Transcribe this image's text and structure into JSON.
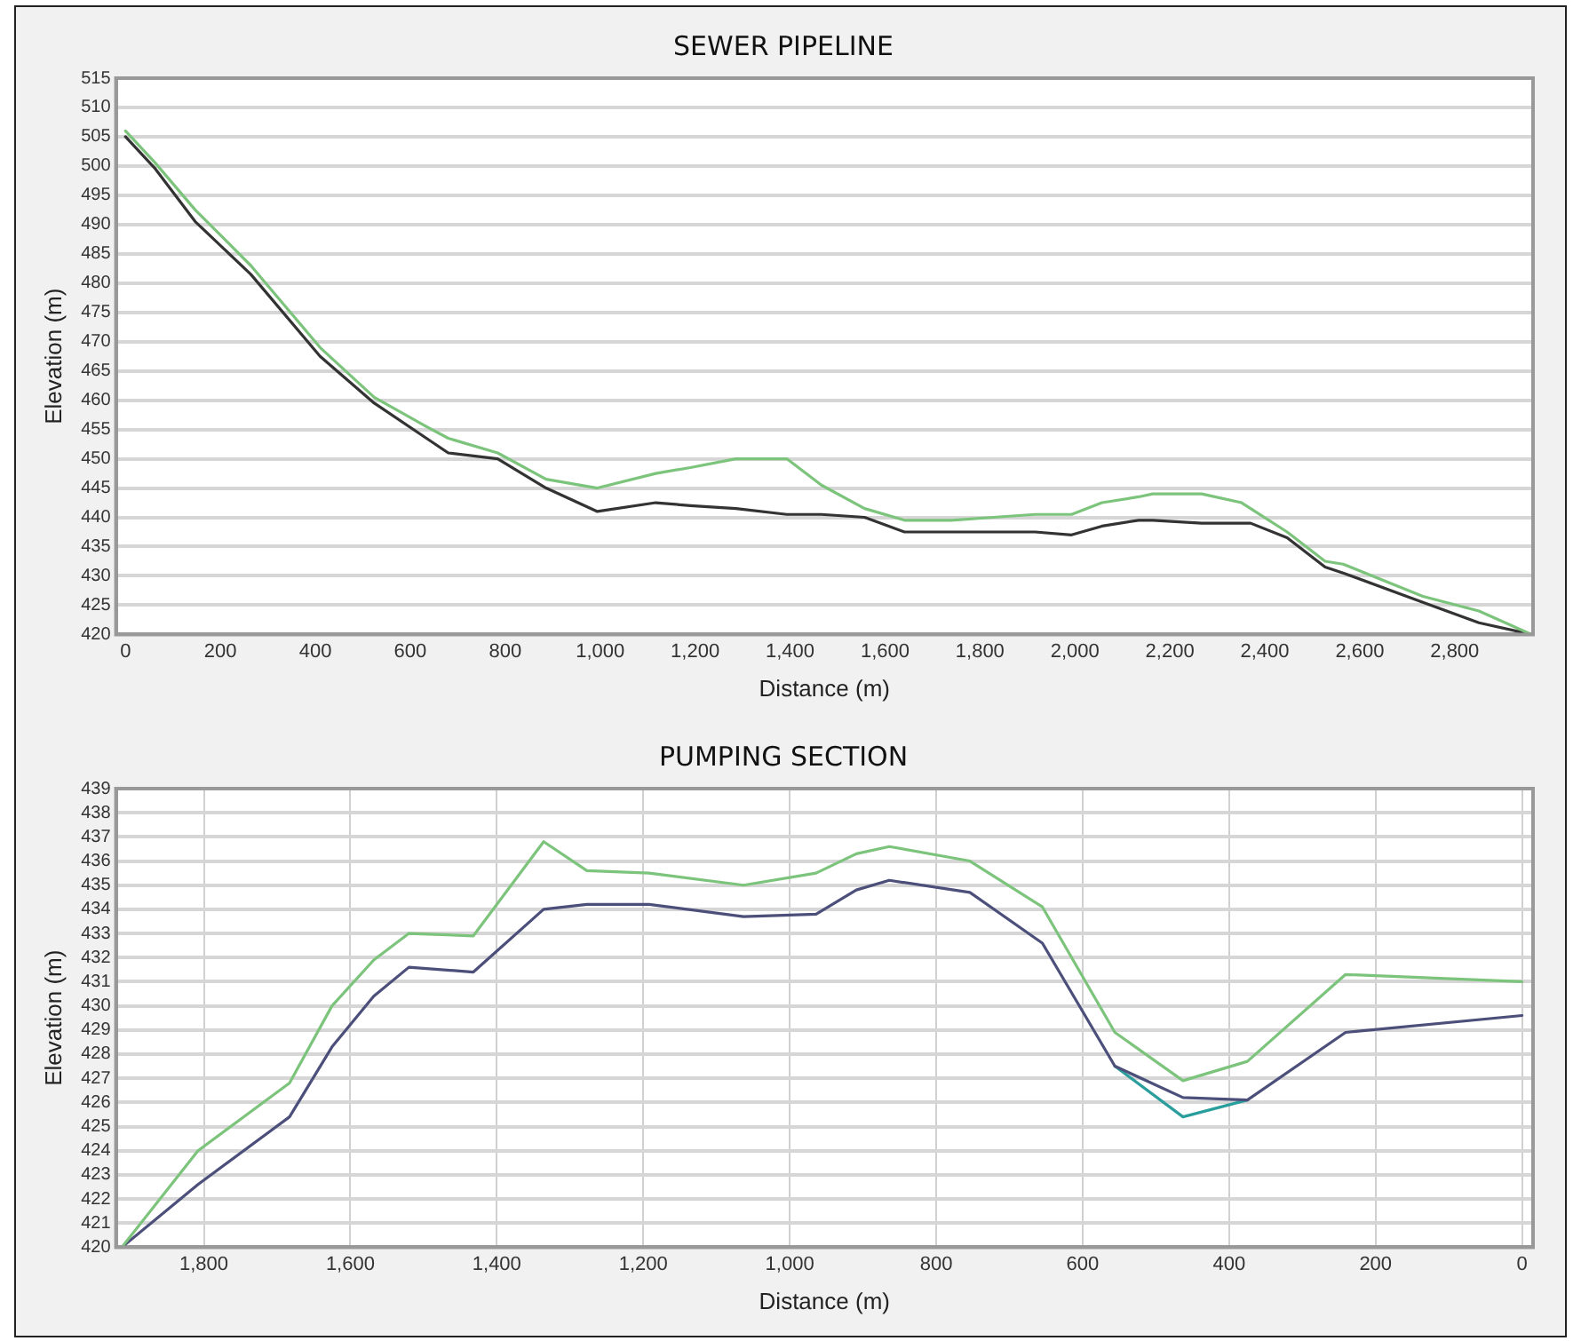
{
  "chart_data": [
    {
      "type": "line",
      "title": "SEWER PIPELINE",
      "xlabel": "Distance (m)",
      "ylabel": "Elevation (m)",
      "marker": "none",
      "line_style": "solid",
      "grid": "y",
      "legend": false,
      "xlim": [
        -20,
        2965
      ],
      "ylim": [
        420,
        515
      ],
      "xticks": [
        0,
        200,
        400,
        600,
        800,
        {
          "value": 1000,
          "label": "1,000"
        },
        {
          "value": 1200,
          "label": "1,200"
        },
        {
          "value": 1400,
          "label": "1,400"
        },
        {
          "value": 1600,
          "label": "1,600"
        },
        {
          "value": 1800,
          "label": "1,800"
        },
        {
          "value": 2000,
          "label": "2,000"
        },
        {
          "value": 2200,
          "label": "2,200"
        },
        {
          "value": 2400,
          "label": "2,400"
        },
        {
          "value": 2600,
          "label": "2,600"
        },
        {
          "value": 2800,
          "label": "2,800"
        }
      ],
      "yticks": [
        420,
        425,
        430,
        435,
        440,
        445,
        450,
        455,
        460,
        465,
        470,
        475,
        480,
        485,
        490,
        495,
        500,
        505,
        510,
        515
      ],
      "series": [
        {
          "color": "#7cc47c",
          "x": [
            0,
            63,
            147,
            264,
            410,
            524,
            634,
            680,
            784,
            886,
            994,
            1117,
            1190,
            1286,
            1393,
            1466,
            1557,
            1641,
            1740,
            1828,
            1916,
            1993,
            2057,
            2134,
            2164,
            2267,
            2351,
            2370,
            2447,
            2527,
            2565,
            2733,
            2851,
            2962
          ],
          "values": [
            506,
            500.5,
            492.5,
            483,
            469,
            460.5,
            455.5,
            453.5,
            451,
            446.5,
            445,
            447.5,
            448.5,
            450,
            450,
            445.5,
            441.5,
            439.5,
            439.5,
            440,
            440.5,
            440.5,
            442.5,
            443.5,
            444,
            444,
            442.5,
            441.5,
            437.5,
            432.5,
            432,
            426.5,
            424,
            420
          ]
        },
        {
          "color": "#333333",
          "x": [
            0,
            63,
            147,
            264,
            410,
            524,
            634,
            680,
            784,
            886,
            994,
            1117,
            1190,
            1286,
            1393,
            1466,
            1557,
            1641,
            1740,
            1828,
            1916,
            1993,
            2057,
            2134,
            2164,
            2267,
            2351,
            2370,
            2447,
            2527,
            2565,
            2733,
            2851,
            2962
          ],
          "values": [
            505,
            499.5,
            490.5,
            481.5,
            467.5,
            459.5,
            453.5,
            451,
            450,
            445,
            441,
            442.5,
            442,
            441.5,
            440.5,
            440.5,
            440,
            437.5,
            437.5,
            437.5,
            437.5,
            437,
            438.5,
            439.5,
            439.5,
            439,
            439,
            439,
            436.5,
            431.5,
            430.5,
            425.5,
            422,
            420
          ]
        }
      ]
    },
    {
      "type": "line",
      "title": "PUMPING SECTION",
      "xlabel": "Distance (m)",
      "ylabel": "Elevation (m)",
      "marker": "none",
      "line_style": "solid",
      "grid": true,
      "legend": false,
      "xlim": [
        1920,
        -15
      ],
      "ylim": [
        420,
        439
      ],
      "xticks": [
        {
          "value": 1800,
          "label": "1,800"
        },
        {
          "value": 1600,
          "label": "1,600"
        },
        {
          "value": 1400,
          "label": "1,400"
        },
        {
          "value": 1200,
          "label": "1,200"
        },
        {
          "value": 1000,
          "label": "1,000"
        },
        800,
        600,
        400,
        200,
        0
      ],
      "yticks": [
        420,
        421,
        422,
        423,
        424,
        425,
        426,
        427,
        428,
        429,
        430,
        431,
        432,
        433,
        434,
        435,
        436,
        437,
        438,
        439
      ],
      "series": [
        {
          "color": "#7cc47c",
          "x": [
            1912,
            1808,
            1683,
            1625,
            1568,
            1520,
            1432,
            1336,
            1277,
            1192,
            1063,
            964,
            909,
            864,
            754,
            655,
            556,
            463,
            375,
            241,
            0
          ],
          "values": [
            420,
            424,
            426.8,
            430,
            431.9,
            433,
            432.9,
            436.8,
            435.6,
            435.5,
            435,
            435.5,
            436.3,
            436.6,
            436,
            434.1,
            428.9,
            426.9,
            427.7,
            431.3,
            431
          ]
        },
        {
          "color": "#4b4f7a",
          "x": [
            1912,
            1808,
            1683,
            1625,
            1568,
            1520,
            1432,
            1336,
            1277,
            1192,
            1063,
            964,
            909,
            864,
            754,
            655,
            556,
            463,
            375,
            241,
            0
          ],
          "values": [
            420,
            422.6,
            425.4,
            428.3,
            430.4,
            431.6,
            431.4,
            434,
            434.2,
            434.2,
            433.7,
            433.8,
            434.8,
            435.2,
            434.7,
            432.6,
            427.5,
            426.2,
            426.1,
            428.9,
            429.6
          ]
        },
        {
          "color": "#2a9d9d",
          "x": [
            556,
            463,
            375
          ],
          "values": [
            427.5,
            425.4,
            426.1
          ]
        }
      ]
    }
  ]
}
